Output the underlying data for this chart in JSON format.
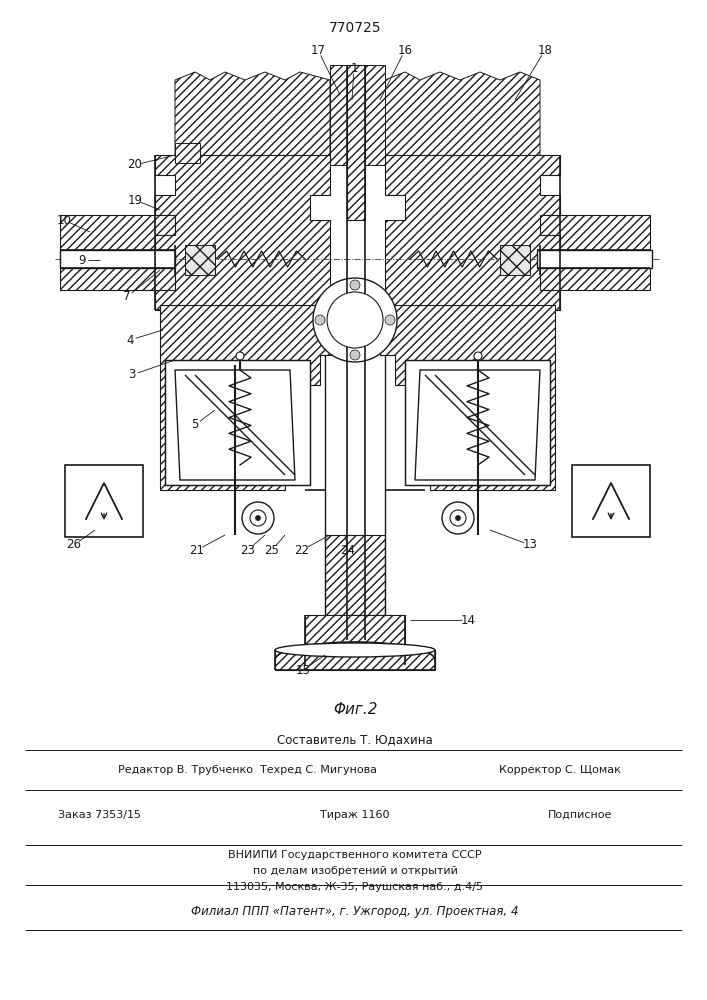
{
  "patent_number": "770725",
  "figure_label": "Φиг.2",
  "bg_color": "#ffffff",
  "line_color": "#1a1a1a",
  "footer_lines": [
    "Составитель Т. Юдахина",
    "Редактор В. Трубченко  Техред С. Мигунова",
    "Корректор С. Щомак",
    "Заказ 7353/15",
    "Тираж 1160",
    "Подписное",
    "ВНИИПИ Государственного комитета СССР",
    "по делам изобретений и открытий",
    "113035, Москва, Ж-35, Раушская наб., д.4/5",
    "Филиал ППП «Патент», г. Ужгород, ул. Проектная, 4"
  ]
}
